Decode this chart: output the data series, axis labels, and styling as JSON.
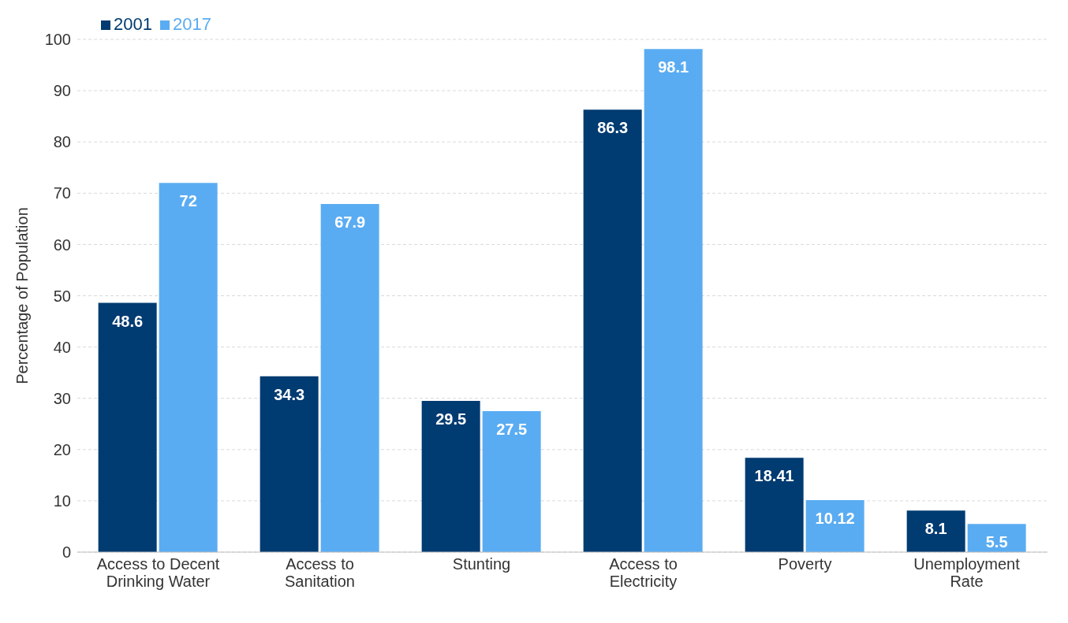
{
  "chart_data": {
    "type": "bar",
    "ylabel": "Percentage of Population",
    "categories": [
      "Access to Decent Drinking Water",
      "Access to Sanitation",
      "Stunting",
      "Access to Electricity",
      "Poverty",
      "Unemployment Rate"
    ],
    "series": [
      {
        "name": "2001",
        "color": "#003b71",
        "values": [
          48.6,
          34.3,
          29.5,
          86.3,
          18.41,
          8.1
        ]
      },
      {
        "name": "2017",
        "color": "#5aacf2",
        "values": [
          72,
          67.9,
          27.5,
          98.1,
          10.12,
          5.5
        ]
      }
    ],
    "ylim": [
      0,
      100
    ],
    "yticks": [
      0,
      10,
      20,
      30,
      40,
      50,
      60,
      70,
      80,
      90,
      100
    ],
    "grid": "y",
    "legend": "top left",
    "data_labels": true
  }
}
